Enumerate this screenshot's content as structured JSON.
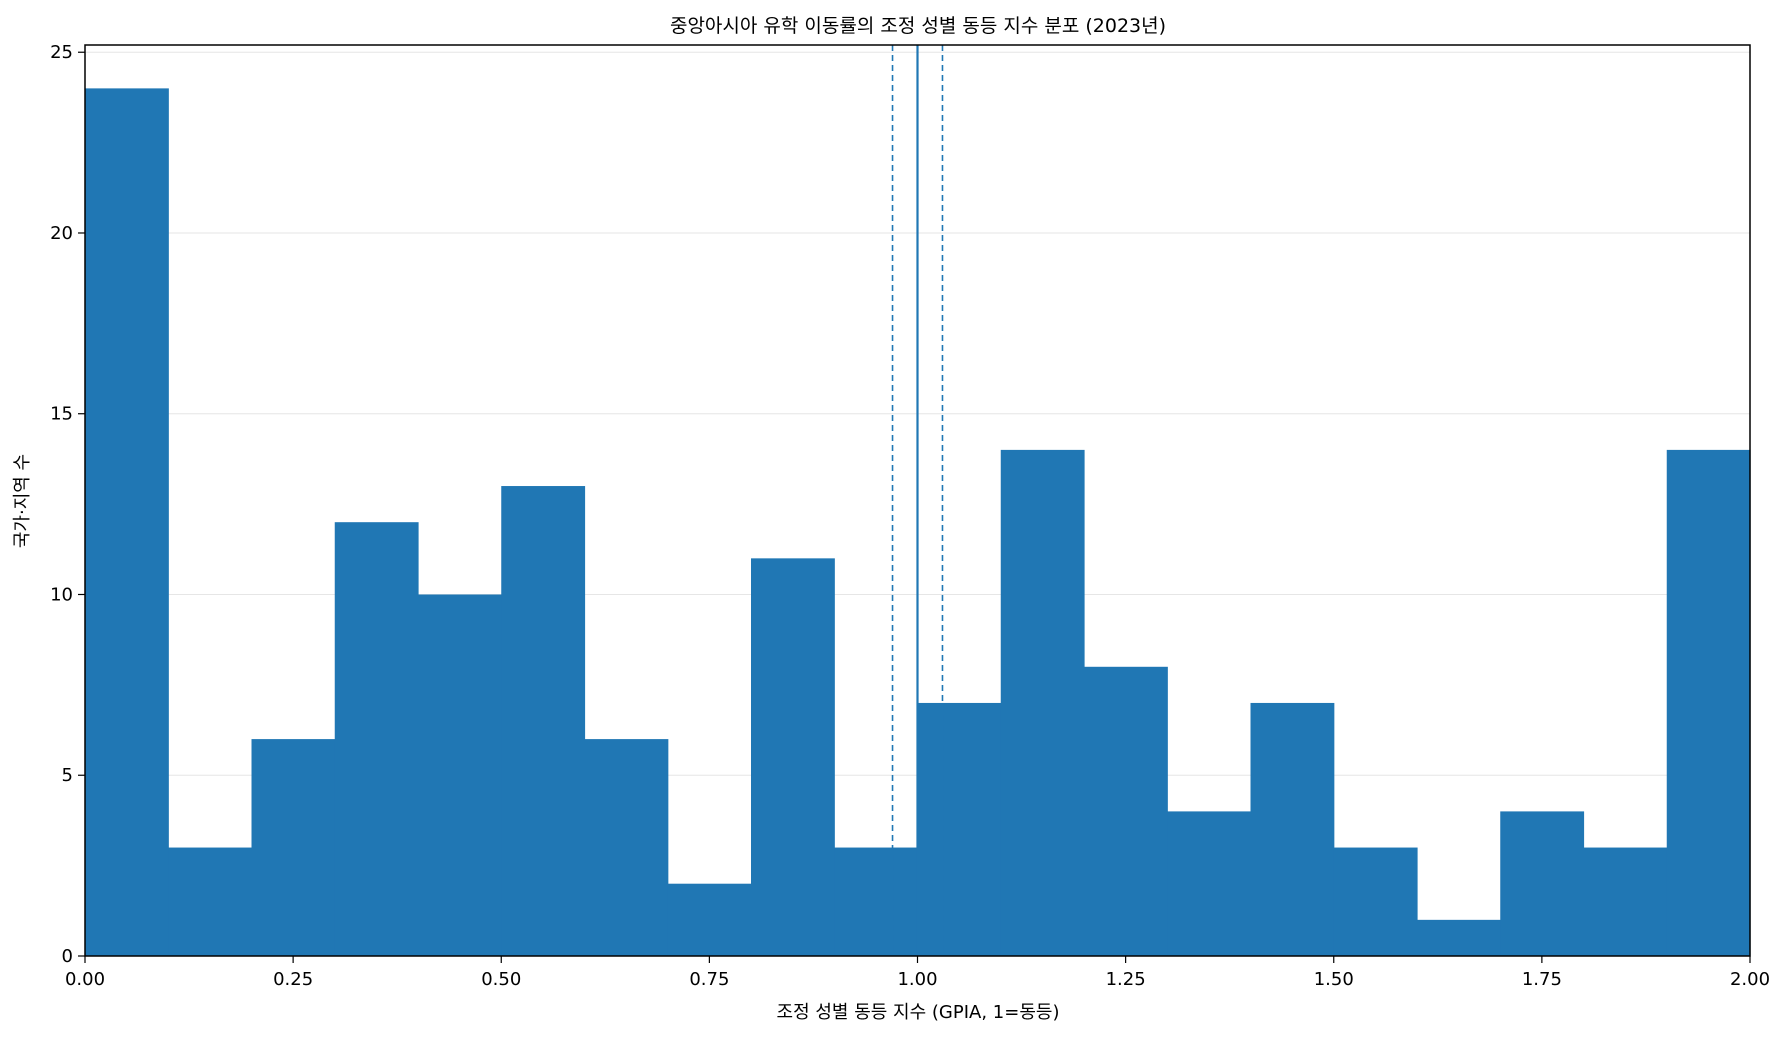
{
  "chart_data": {
    "type": "bar",
    "title": "중앙아시아 유학 이동률의 조정 성별 동등 지수 분포 (2023년)",
    "xlabel": "조정 성별 동등 지수 (GPIA, 1=동등)",
    "ylabel": "국가·지역 수",
    "bin_edges": [
      0.0,
      0.1,
      0.2,
      0.3,
      0.4,
      0.5,
      0.6,
      0.7,
      0.8,
      0.9,
      1.0,
      1.1,
      1.2,
      1.3,
      1.4,
      1.5,
      1.6,
      1.7,
      1.8,
      1.9,
      2.0
    ],
    "values": [
      24,
      3,
      6,
      12,
      10,
      13,
      6,
      2,
      11,
      3,
      7,
      14,
      8,
      4,
      7,
      3,
      1,
      4,
      3,
      14
    ],
    "xlim": [
      0,
      2.0
    ],
    "ylim": [
      0,
      25.2
    ],
    "x_ticks": [
      "0.00",
      "0.25",
      "0.50",
      "0.75",
      "1.00",
      "1.25",
      "1.50",
      "1.75",
      "2.00"
    ],
    "y_ticks": [
      "0",
      "5",
      "10",
      "15",
      "20",
      "25"
    ],
    "reference_lines": [
      {
        "x": 1.0,
        "style": "solid"
      },
      {
        "x": 0.97,
        "style": "dashed"
      },
      {
        "x": 1.03,
        "style": "dashed"
      }
    ],
    "grid": "y",
    "bar_color": "#2077b4"
  }
}
